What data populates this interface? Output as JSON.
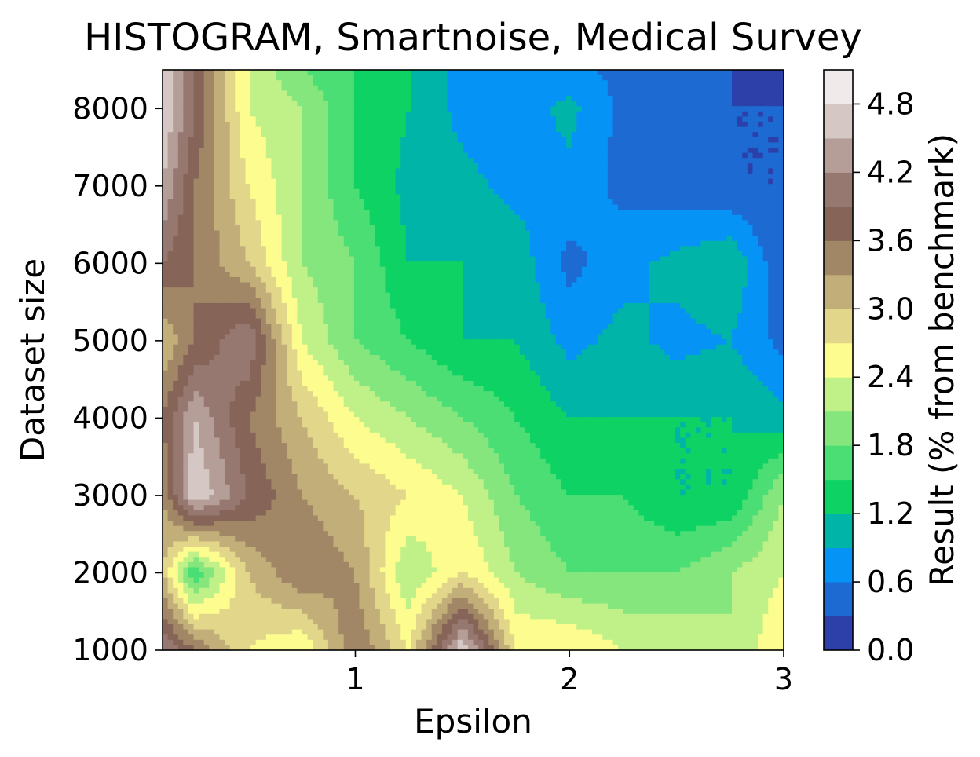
{
  "chart_data": {
    "type": "contour",
    "title": "HISTOGRAM, Smartnoise, Medical Survey",
    "xlabel": "Epsilon",
    "ylabel": "Dataset size",
    "colorbar_label": "Result (% from benchmark)",
    "xlim": [
      0.1,
      3.0
    ],
    "ylim": [
      1000,
      8500
    ],
    "xticks": [
      "1",
      "2",
      "3"
    ],
    "yticks": [
      "1000",
      "2000",
      "3000",
      "4000",
      "5000",
      "6000",
      "7000",
      "8000"
    ],
    "colorbar_ticks": [
      "0.0",
      "0.6",
      "1.2",
      "1.8",
      "2.4",
      "3.0",
      "3.6",
      "4.2",
      "4.8"
    ],
    "levels": [
      0.0,
      0.3,
      0.6,
      0.9,
      1.2,
      1.5,
      1.8,
      2.1,
      2.4,
      2.7,
      3.0,
      3.3,
      3.6,
      3.9,
      4.2,
      4.5,
      4.8,
      5.1
    ],
    "level_colors": [
      "#2d3fa9",
      "#1c6ad2",
      "#0693f6",
      "#00b4a8",
      "#0ed264",
      "#4ade74",
      "#86e67e",
      "#c0f188",
      "#fdfc8e",
      "#e2d68a",
      "#c2ae78",
      "#a18765",
      "#866458",
      "#977870",
      "#b59e98",
      "#d4c7c4",
      "#f0ebea"
    ],
    "colormap": "terrain",
    "epsilon": [
      0.1,
      0.25,
      0.5,
      0.75,
      1.0,
      1.25,
      1.5,
      1.75,
      2.0,
      2.25,
      2.5,
      2.75,
      3.0
    ],
    "dataset_size": [
      1000,
      2000,
      3000,
      4000,
      5000,
      6000,
      7000,
      8000,
      8500
    ],
    "z": [
      [
        4.2,
        3.6,
        2.7,
        2.4,
        3.6,
        2.7,
        4.8,
        2.7,
        2.7,
        2.4,
        2.4,
        2.1,
        2.7
      ],
      [
        3.0,
        1.5,
        3.0,
        3.6,
        3.3,
        2.1,
        2.7,
        2.1,
        1.8,
        1.8,
        1.8,
        2.1,
        2.4
      ],
      [
        3.3,
        4.8,
        3.9,
        3.3,
        3.0,
        2.7,
        2.4,
        1.8,
        1.5,
        1.5,
        1.2,
        1.2,
        2.1
      ],
      [
        3.6,
        4.5,
        3.6,
        3.0,
        2.4,
        2.1,
        1.8,
        1.5,
        1.2,
        1.2,
        1.2,
        1.2,
        1.0
      ],
      [
        3.0,
        3.6,
        4.2,
        2.4,
        1.8,
        1.5,
        1.2,
        1.2,
        0.8,
        1.0,
        0.8,
        0.9,
        0.5
      ],
      [
        3.9,
        3.6,
        3.0,
        2.1,
        1.8,
        1.2,
        1.2,
        1.1,
        0.5,
        0.8,
        1.0,
        1.2,
        0.3
      ],
      [
        4.5,
        3.6,
        2.7,
        2.1,
        1.5,
        1.1,
        1.0,
        0.8,
        0.8,
        0.5,
        0.4,
        0.3,
        0.3
      ],
      [
        4.8,
        3.9,
        2.4,
        2.1,
        1.5,
        1.2,
        0.8,
        0.7,
        1.0,
        0.5,
        0.4,
        0.3,
        0.3
      ],
      [
        4.8,
        3.9,
        2.4,
        1.8,
        1.5,
        1.2,
        0.8,
        0.7,
        0.7,
        0.5,
        0.4,
        0.3,
        0.2
      ]
    ]
  }
}
